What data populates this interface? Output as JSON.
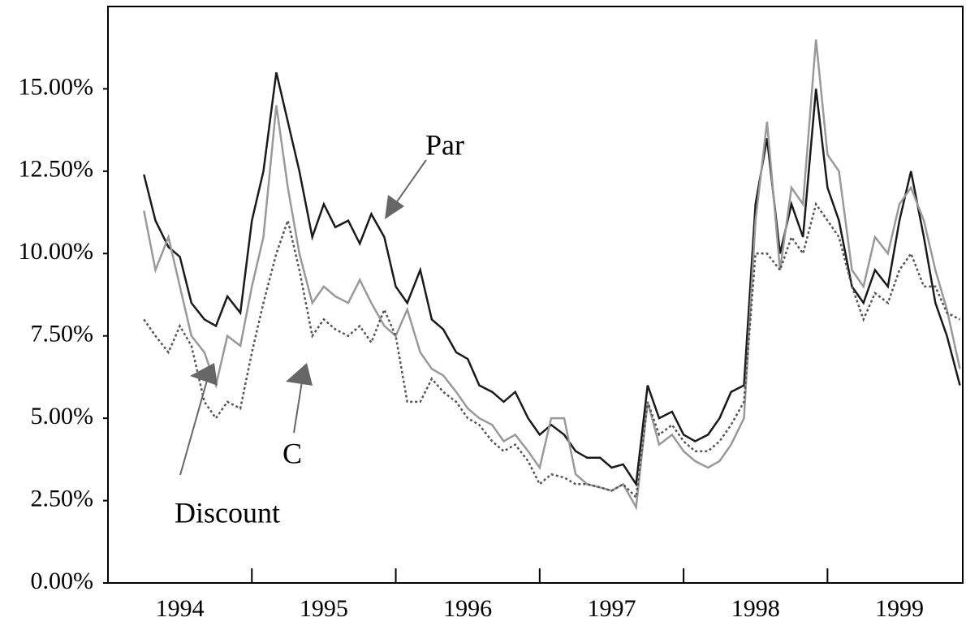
{
  "chart_data": {
    "type": "line",
    "x": [
      1994.25,
      1994.33,
      1994.42,
      1994.5,
      1994.58,
      1994.67,
      1994.75,
      1994.83,
      1994.92,
      1995.0,
      1995.08,
      1995.17,
      1995.25,
      1995.33,
      1995.42,
      1995.5,
      1995.58,
      1995.67,
      1995.75,
      1995.83,
      1995.92,
      1996.0,
      1996.08,
      1996.17,
      1996.25,
      1996.33,
      1996.42,
      1996.5,
      1996.58,
      1996.67,
      1996.75,
      1996.83,
      1996.92,
      1997.0,
      1997.08,
      1997.17,
      1997.25,
      1997.33,
      1997.42,
      1997.5,
      1997.58,
      1997.67,
      1997.75,
      1997.83,
      1997.92,
      1998.0,
      1998.08,
      1998.17,
      1998.25,
      1998.33,
      1998.42,
      1998.5,
      1998.58,
      1998.67,
      1998.75,
      1998.83,
      1998.92,
      1999.0,
      1999.08,
      1999.17,
      1999.25,
      1999.33,
      1999.42,
      1999.5,
      1999.58,
      1999.67,
      1999.75,
      1999.83,
      1999.92
    ],
    "series": [
      {
        "name": "Par",
        "color": "#1a1a1a",
        "dash": "none",
        "values": [
          12.4,
          11.0,
          10.2,
          9.9,
          8.5,
          8.0,
          7.8,
          8.7,
          8.2,
          11.0,
          12.5,
          15.5,
          14.0,
          12.5,
          10.5,
          11.5,
          10.8,
          11.0,
          10.3,
          11.2,
          10.5,
          9.0,
          8.5,
          9.5,
          8.0,
          7.7,
          7.0,
          6.8,
          6.0,
          5.8,
          5.5,
          5.8,
          5.0,
          4.5,
          4.8,
          4.5,
          4.0,
          3.8,
          3.8,
          3.5,
          3.6,
          3.0,
          6.0,
          5.0,
          5.2,
          4.5,
          4.3,
          4.5,
          5.0,
          5.8,
          6.0,
          11.5,
          13.5,
          10.0,
          11.5,
          10.5,
          15.0,
          12.0,
          11.0,
          9.0,
          8.5,
          9.5,
          9.0,
          11.0,
          12.5,
          10.5,
          8.5,
          7.5,
          6.0
        ]
      },
      {
        "name": "Discount",
        "color": "#999999",
        "dash": "none",
        "values": [
          11.3,
          9.5,
          10.5,
          9.0,
          7.5,
          7.0,
          6.0,
          7.5,
          7.2,
          9.0,
          10.5,
          14.5,
          12.0,
          10.0,
          8.5,
          9.0,
          8.7,
          8.5,
          9.2,
          8.5,
          7.8,
          7.5,
          8.3,
          7.0,
          6.5,
          6.3,
          5.8,
          5.3,
          5.0,
          4.8,
          4.3,
          4.5,
          4.0,
          3.5,
          5.0,
          5.0,
          3.3,
          3.0,
          2.9,
          2.8,
          3.0,
          2.3,
          5.5,
          4.2,
          4.5,
          4.0,
          3.7,
          3.5,
          3.7,
          4.2,
          5.0,
          11.0,
          14.0,
          9.5,
          12.0,
          11.5,
          16.5,
          13.0,
          12.5,
          9.5,
          9.0,
          10.5,
          10.0,
          11.5,
          12.0,
          11.0,
          9.5,
          8.3,
          6.5
        ]
      },
      {
        "name": "C",
        "color": "#555555",
        "dash": "3 3",
        "values": [
          8.0,
          7.5,
          7.0,
          7.8,
          7.2,
          5.5,
          5.0,
          5.5,
          5.3,
          7.0,
          8.5,
          10.0,
          11.0,
          9.5,
          7.5,
          8.0,
          7.7,
          7.5,
          7.8,
          7.3,
          8.3,
          7.5,
          5.5,
          5.5,
          6.2,
          5.8,
          5.5,
          5.0,
          4.8,
          4.3,
          4.0,
          4.2,
          3.7,
          3.0,
          3.3,
          3.2,
          3.0,
          3.0,
          2.9,
          2.8,
          3.0,
          2.6,
          5.5,
          4.5,
          4.8,
          4.3,
          4.0,
          4.0,
          4.3,
          4.8,
          5.5,
          10.0,
          10.0,
          9.5,
          10.5,
          10.0,
          11.5,
          11.0,
          10.5,
          9.0,
          8.0,
          8.8,
          8.5,
          9.5,
          10.0,
          9.0,
          9.0,
          8.2,
          8.0
        ]
      }
    ],
    "xlim": [
      1994.0,
      1999.94
    ],
    "xticks": [
      1995,
      1996,
      1997,
      1998,
      1999
    ],
    "xlabels": [
      {
        "value": 1994.5,
        "label": "1994"
      },
      {
        "value": 1995.5,
        "label": "1995"
      },
      {
        "value": 1996.5,
        "label": "1996"
      },
      {
        "value": 1997.5,
        "label": "1997"
      },
      {
        "value": 1998.5,
        "label": "1998"
      },
      {
        "value": 1999.5,
        "label": "1999"
      }
    ],
    "ylim": [
      0,
      17.5
    ],
    "yticks": [
      {
        "value": 0,
        "label": "0.00%"
      },
      {
        "value": 2.5,
        "label": "2.50%"
      },
      {
        "value": 5,
        "label": "5.00%"
      },
      {
        "value": 7.5,
        "label": "7.50%"
      },
      {
        "value": 10,
        "label": "10.00%"
      },
      {
        "value": 12.5,
        "label": "12.50%"
      },
      {
        "value": 15,
        "label": "15.00%"
      }
    ],
    "annotations": [
      "Par",
      "Discount",
      "C"
    ],
    "grid": false
  }
}
